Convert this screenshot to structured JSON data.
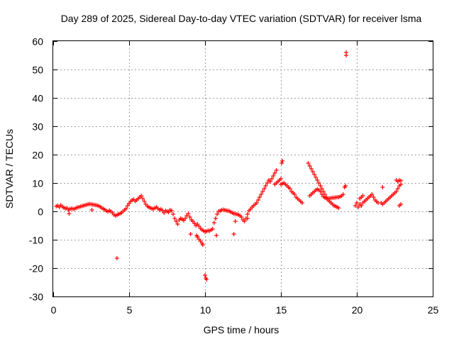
{
  "chart_data": {
    "type": "scatter",
    "title": "Day 289 of 2025, Sidereal Day-to-day VTEC variation (SDTVAR) for receiver lsma",
    "xlabel": "GPS time / hours",
    "ylabel": "SDTVAR / TECUs",
    "xlim": [
      0,
      25
    ],
    "ylim": [
      -30,
      60
    ],
    "xticks": [
      0,
      5,
      10,
      15,
      20,
      25
    ],
    "yticks": [
      -30,
      -20,
      -10,
      0,
      10,
      20,
      30,
      40,
      50,
      60
    ],
    "grid": true,
    "marker": "+",
    "color": "#ff0000",
    "series": [
      {
        "name": "SDTVAR",
        "points": [
          [
            0.2,
            1.8
          ],
          [
            0.3,
            2.0
          ],
          [
            0.4,
            1.5
          ],
          [
            0.5,
            2.2
          ],
          [
            0.6,
            1.7
          ],
          [
            0.7,
            1.3
          ],
          [
            0.8,
            1.0
          ],
          [
            0.9,
            1.2
          ],
          [
            1.0,
            0.5
          ],
          [
            1.05,
            -0.8
          ],
          [
            1.1,
            0.8
          ],
          [
            1.2,
            1.0
          ],
          [
            1.3,
            0.9
          ],
          [
            1.4,
            0.8
          ],
          [
            1.5,
            1.2
          ],
          [
            1.6,
            1.4
          ],
          [
            1.7,
            1.5
          ],
          [
            1.8,
            1.7
          ],
          [
            1.9,
            1.9
          ],
          [
            2.0,
            2.0
          ],
          [
            2.1,
            2.2
          ],
          [
            2.2,
            2.3
          ],
          [
            2.3,
            2.5
          ],
          [
            2.4,
            2.6
          ],
          [
            2.5,
            2.5
          ],
          [
            2.55,
            0.5
          ],
          [
            2.6,
            2.4
          ],
          [
            2.7,
            2.3
          ],
          [
            2.8,
            2.2
          ],
          [
            2.9,
            2.1
          ],
          [
            3.0,
            1.9
          ],
          [
            3.1,
            1.6
          ],
          [
            3.2,
            1.2
          ],
          [
            3.3,
            0.9
          ],
          [
            3.4,
            0.6
          ],
          [
            3.5,
            0.2
          ],
          [
            3.6,
            -0.1
          ],
          [
            3.7,
            0.3
          ],
          [
            3.8,
            0.0
          ],
          [
            3.9,
            -0.5
          ],
          [
            4.0,
            -1.2
          ],
          [
            4.1,
            -1.5
          ],
          [
            4.2,
            -1.3
          ],
          [
            4.3,
            -1.0
          ],
          [
            4.4,
            -0.8
          ],
          [
            4.5,
            -0.5
          ],
          [
            4.6,
            0.0
          ],
          [
            4.7,
            0.5
          ],
          [
            4.8,
            1.0
          ],
          [
            4.9,
            2.0
          ],
          [
            5.0,
            2.8
          ],
          [
            5.1,
            3.5
          ],
          [
            5.2,
            4.0
          ],
          [
            5.3,
            4.2
          ],
          [
            5.4,
            3.6
          ],
          [
            5.5,
            4.0
          ],
          [
            5.6,
            4.5
          ],
          [
            5.7,
            5.0
          ],
          [
            5.8,
            5.5
          ],
          [
            5.9,
            4.5
          ],
          [
            6.0,
            3.5
          ],
          [
            6.1,
            2.5
          ],
          [
            6.2,
            1.8
          ],
          [
            6.3,
            1.5
          ],
          [
            6.4,
            1.2
          ],
          [
            6.5,
            1.0
          ],
          [
            6.6,
            0.8
          ],
          [
            6.7,
            1.2
          ],
          [
            6.8,
            1.5
          ],
          [
            6.9,
            1.0
          ],
          [
            7.0,
            0.5
          ],
          [
            7.1,
            0.8
          ],
          [
            7.2,
            0.3
          ],
          [
            7.3,
            -0.5
          ],
          [
            7.4,
            0.2
          ],
          [
            7.5,
            0.0
          ],
          [
            7.6,
            -0.3
          ],
          [
            7.7,
            0.5
          ],
          [
            7.8,
            0.2
          ],
          [
            7.9,
            -1.0
          ],
          [
            8.0,
            -2.5
          ],
          [
            8.1,
            -3.5
          ],
          [
            8.2,
            -4.5
          ],
          [
            8.3,
            -3.0
          ],
          [
            8.4,
            -2.5
          ],
          [
            8.5,
            -2.8
          ],
          [
            8.6,
            -3.2
          ],
          [
            8.7,
            -2.5
          ],
          [
            8.8,
            -1.5
          ],
          [
            8.9,
            -0.8
          ],
          [
            9.0,
            -2.0
          ],
          [
            9.05,
            -8.0
          ],
          [
            9.1,
            -3.0
          ],
          [
            9.2,
            -3.5
          ],
          [
            9.3,
            -4.2
          ],
          [
            9.4,
            -5.0
          ],
          [
            9.45,
            -8.5
          ],
          [
            9.5,
            -9.0
          ],
          [
            9.6,
            -9.8
          ],
          [
            9.7,
            -10.5
          ],
          [
            9.8,
            -11.2
          ],
          [
            9.85,
            -11.8
          ],
          [
            9.5,
            -4.5
          ],
          [
            9.6,
            -5.2
          ],
          [
            9.7,
            -6.0
          ],
          [
            9.8,
            -6.5
          ],
          [
            9.9,
            -6.8
          ],
          [
            10.0,
            -7.2
          ],
          [
            10.1,
            -7.0
          ],
          [
            10.2,
            -6.8
          ],
          [
            10.3,
            -6.9
          ],
          [
            10.4,
            -6.5
          ],
          [
            10.5,
            -6.2
          ],
          [
            10.6,
            -4.0
          ],
          [
            10.7,
            -2.5
          ],
          [
            10.75,
            -8.5
          ],
          [
            10.8,
            -1.0
          ],
          [
            10.9,
            0.0
          ],
          [
            11.0,
            0.2
          ],
          [
            11.1,
            0.5
          ],
          [
            11.2,
            0.6
          ],
          [
            11.3,
            0.5
          ],
          [
            11.4,
            0.3
          ],
          [
            11.5,
            0.2
          ],
          [
            11.6,
            0.1
          ],
          [
            11.7,
            -0.2
          ],
          [
            11.8,
            -0.5
          ],
          [
            11.9,
            -0.8
          ],
          [
            12.0,
            -0.9
          ],
          [
            12.1,
            -1.0
          ],
          [
            12.2,
            -1.2
          ],
          [
            12.3,
            -1.5
          ],
          [
            12.4,
            -2.0
          ],
          [
            12.5,
            -3.0
          ],
          [
            12.6,
            -3.5
          ],
          [
            12.7,
            -2.5
          ],
          [
            12.8,
            -1.0
          ],
          [
            12.9,
            0.2
          ],
          [
            13.0,
            0.8
          ],
          [
            13.1,
            1.5
          ],
          [
            13.2,
            2.0
          ],
          [
            13.3,
            2.5
          ],
          [
            13.4,
            3.0
          ],
          [
            13.5,
            4.0
          ],
          [
            13.6,
            5.0
          ],
          [
            13.7,
            6.0
          ],
          [
            13.8,
            7.0
          ],
          [
            13.9,
            8.0
          ],
          [
            14.0,
            9.0
          ],
          [
            14.1,
            10.0
          ],
          [
            14.2,
            11.0
          ],
          [
            14.3,
            10.5
          ],
          [
            14.4,
            11.5
          ],
          [
            14.5,
            12.5
          ],
          [
            14.6,
            13.5
          ],
          [
            14.7,
            14.5
          ],
          [
            14.6,
            9.5
          ],
          [
            14.7,
            10.0
          ],
          [
            14.8,
            10.5
          ],
          [
            14.9,
            11.0
          ],
          [
            15.0,
            11.5
          ],
          [
            15.05,
            17.0
          ],
          [
            15.1,
            17.8
          ],
          [
            15.0,
            9.5
          ],
          [
            15.1,
            9.8
          ],
          [
            15.2,
            10.0
          ],
          [
            15.3,
            9.5
          ],
          [
            15.4,
            9.0
          ],
          [
            15.5,
            8.5
          ],
          [
            15.6,
            8.0
          ],
          [
            15.7,
            7.0
          ],
          [
            15.8,
            6.5
          ],
          [
            15.9,
            6.0
          ],
          [
            16.0,
            5.0
          ],
          [
            16.1,
            4.5
          ],
          [
            16.2,
            4.0
          ],
          [
            16.3,
            3.5
          ],
          [
            16.4,
            3.0
          ],
          [
            16.8,
            17.0
          ],
          [
            16.9,
            16.0
          ],
          [
            17.0,
            15.0
          ],
          [
            17.1,
            14.0
          ],
          [
            17.2,
            13.0
          ],
          [
            17.3,
            12.0
          ],
          [
            17.4,
            11.0
          ],
          [
            17.5,
            10.0
          ],
          [
            17.6,
            9.0
          ],
          [
            17.7,
            8.0
          ],
          [
            17.8,
            7.0
          ],
          [
            17.9,
            6.0
          ],
          [
            18.0,
            5.0
          ],
          [
            18.1,
            4.0
          ],
          [
            18.2,
            3.5
          ],
          [
            18.3,
            3.0
          ],
          [
            18.4,
            2.5
          ],
          [
            18.5,
            2.0
          ],
          [
            18.6,
            1.8
          ],
          [
            18.7,
            1.5
          ],
          [
            18.8,
            1.2
          ],
          [
            16.9,
            5.5
          ],
          [
            17.0,
            6.0
          ],
          [
            17.1,
            6.5
          ],
          [
            17.2,
            7.0
          ],
          [
            17.3,
            7.5
          ],
          [
            17.4,
            7.8
          ],
          [
            17.5,
            7.5
          ],
          [
            17.6,
            7.0
          ],
          [
            17.7,
            6.0
          ],
          [
            17.8,
            5.2
          ],
          [
            17.9,
            4.8
          ],
          [
            18.0,
            4.6
          ],
          [
            18.1,
            4.5
          ],
          [
            18.2,
            4.6
          ],
          [
            18.3,
            4.7
          ],
          [
            18.4,
            4.8
          ],
          [
            18.5,
            4.8
          ],
          [
            18.6,
            4.9
          ],
          [
            18.7,
            5.0
          ],
          [
            18.8,
            5.0
          ],
          [
            18.9,
            5.2
          ],
          [
            19.0,
            5.5
          ],
          [
            19.1,
            6.0
          ],
          [
            19.2,
            8.5
          ],
          [
            19.25,
            9.0
          ],
          [
            19.3,
            55.0
          ],
          [
            19.3,
            56.0
          ],
          [
            19.9,
            2.0
          ],
          [
            20.0,
            3.0
          ],
          [
            20.1,
            1.5
          ],
          [
            20.2,
            2.5
          ],
          [
            20.3,
            2.0
          ],
          [
            20.4,
            3.0
          ],
          [
            20.5,
            3.5
          ],
          [
            20.6,
            4.0
          ],
          [
            20.7,
            4.5
          ],
          [
            20.8,
            5.0
          ],
          [
            20.9,
            5.5
          ],
          [
            21.0,
            6.0
          ],
          [
            21.1,
            5.0
          ],
          [
            21.2,
            4.0
          ],
          [
            21.3,
            3.5
          ],
          [
            21.4,
            3.0
          ],
          [
            20.2,
            4.5
          ],
          [
            20.3,
            5.0
          ],
          [
            20.4,
            5.5
          ],
          [
            21.7,
            8.5
          ],
          [
            21.6,
            3.0
          ],
          [
            21.7,
            2.5
          ],
          [
            21.8,
            3.0
          ],
          [
            21.9,
            3.5
          ],
          [
            22.0,
            4.0
          ],
          [
            22.1,
            4.5
          ],
          [
            22.2,
            5.0
          ],
          [
            22.3,
            5.5
          ],
          [
            22.4,
            6.0
          ],
          [
            22.5,
            6.5
          ],
          [
            22.6,
            7.0
          ],
          [
            22.7,
            8.0
          ],
          [
            22.8,
            9.0
          ],
          [
            22.9,
            9.5
          ],
          [
            22.6,
            11.0
          ],
          [
            22.7,
            10.5
          ],
          [
            22.8,
            11.0
          ],
          [
            22.9,
            10.8
          ],
          [
            22.8,
            2.0
          ],
          [
            22.9,
            2.5
          ],
          [
            4.2,
            -16.5
          ],
          [
            10.0,
            -22.5
          ],
          [
            10.05,
            -23.5
          ],
          [
            10.1,
            -24.0
          ],
          [
            11.9,
            -8.0
          ],
          [
            12.0,
            -3.5
          ],
          [
            12.8,
            -2.5
          ]
        ]
      }
    ]
  }
}
